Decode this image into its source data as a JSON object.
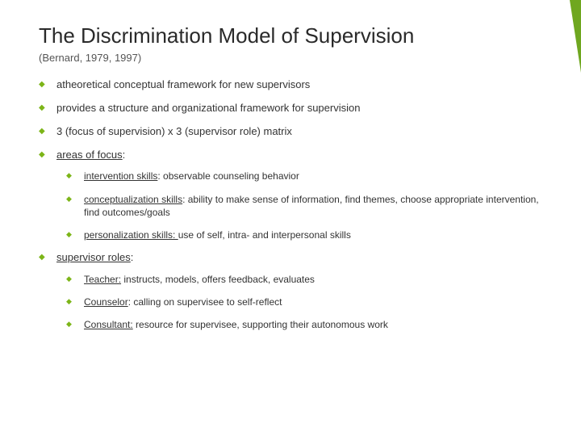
{
  "colors": {
    "accent": "#7cb518",
    "decoration": "#6fa720",
    "background": "#ffffff",
    "text": "#3a3a3a"
  },
  "title": "The Discrimination Model of Supervision",
  "subtitle": "(Bernard, 1979, 1997)",
  "b1": "atheoretical conceptual framework for new supervisors",
  "b2": "provides a structure and organizational framework for supervision",
  "b3": "3 (focus of supervision) x 3 (supervisor role) matrix",
  "b4": "areas of focus",
  "b4_1_label": "intervention skills",
  "b4_1_text": ": observable counseling behavior",
  "b4_2_label": "conceptualization skills",
  "b4_2_text": ": ability to make sense of information, find themes, choose appropriate intervention, find outcomes/goals",
  "b4_3_label": "personalization skills: ",
  "b4_3_text": "use of self, intra- and interpersonal skills",
  "b5": "supervisor roles",
  "b5_1_label": "Teacher:",
  "b5_1_text": " instructs, models, offers feedback, evaluates",
  "b5_2_label": "Counselor",
  "b5_2_text": ": calling on supervisee to self-reflect",
  "b5_3_label": "Consultant:",
  "b5_3_text": " resource for supervisee, supporting their autonomous work"
}
